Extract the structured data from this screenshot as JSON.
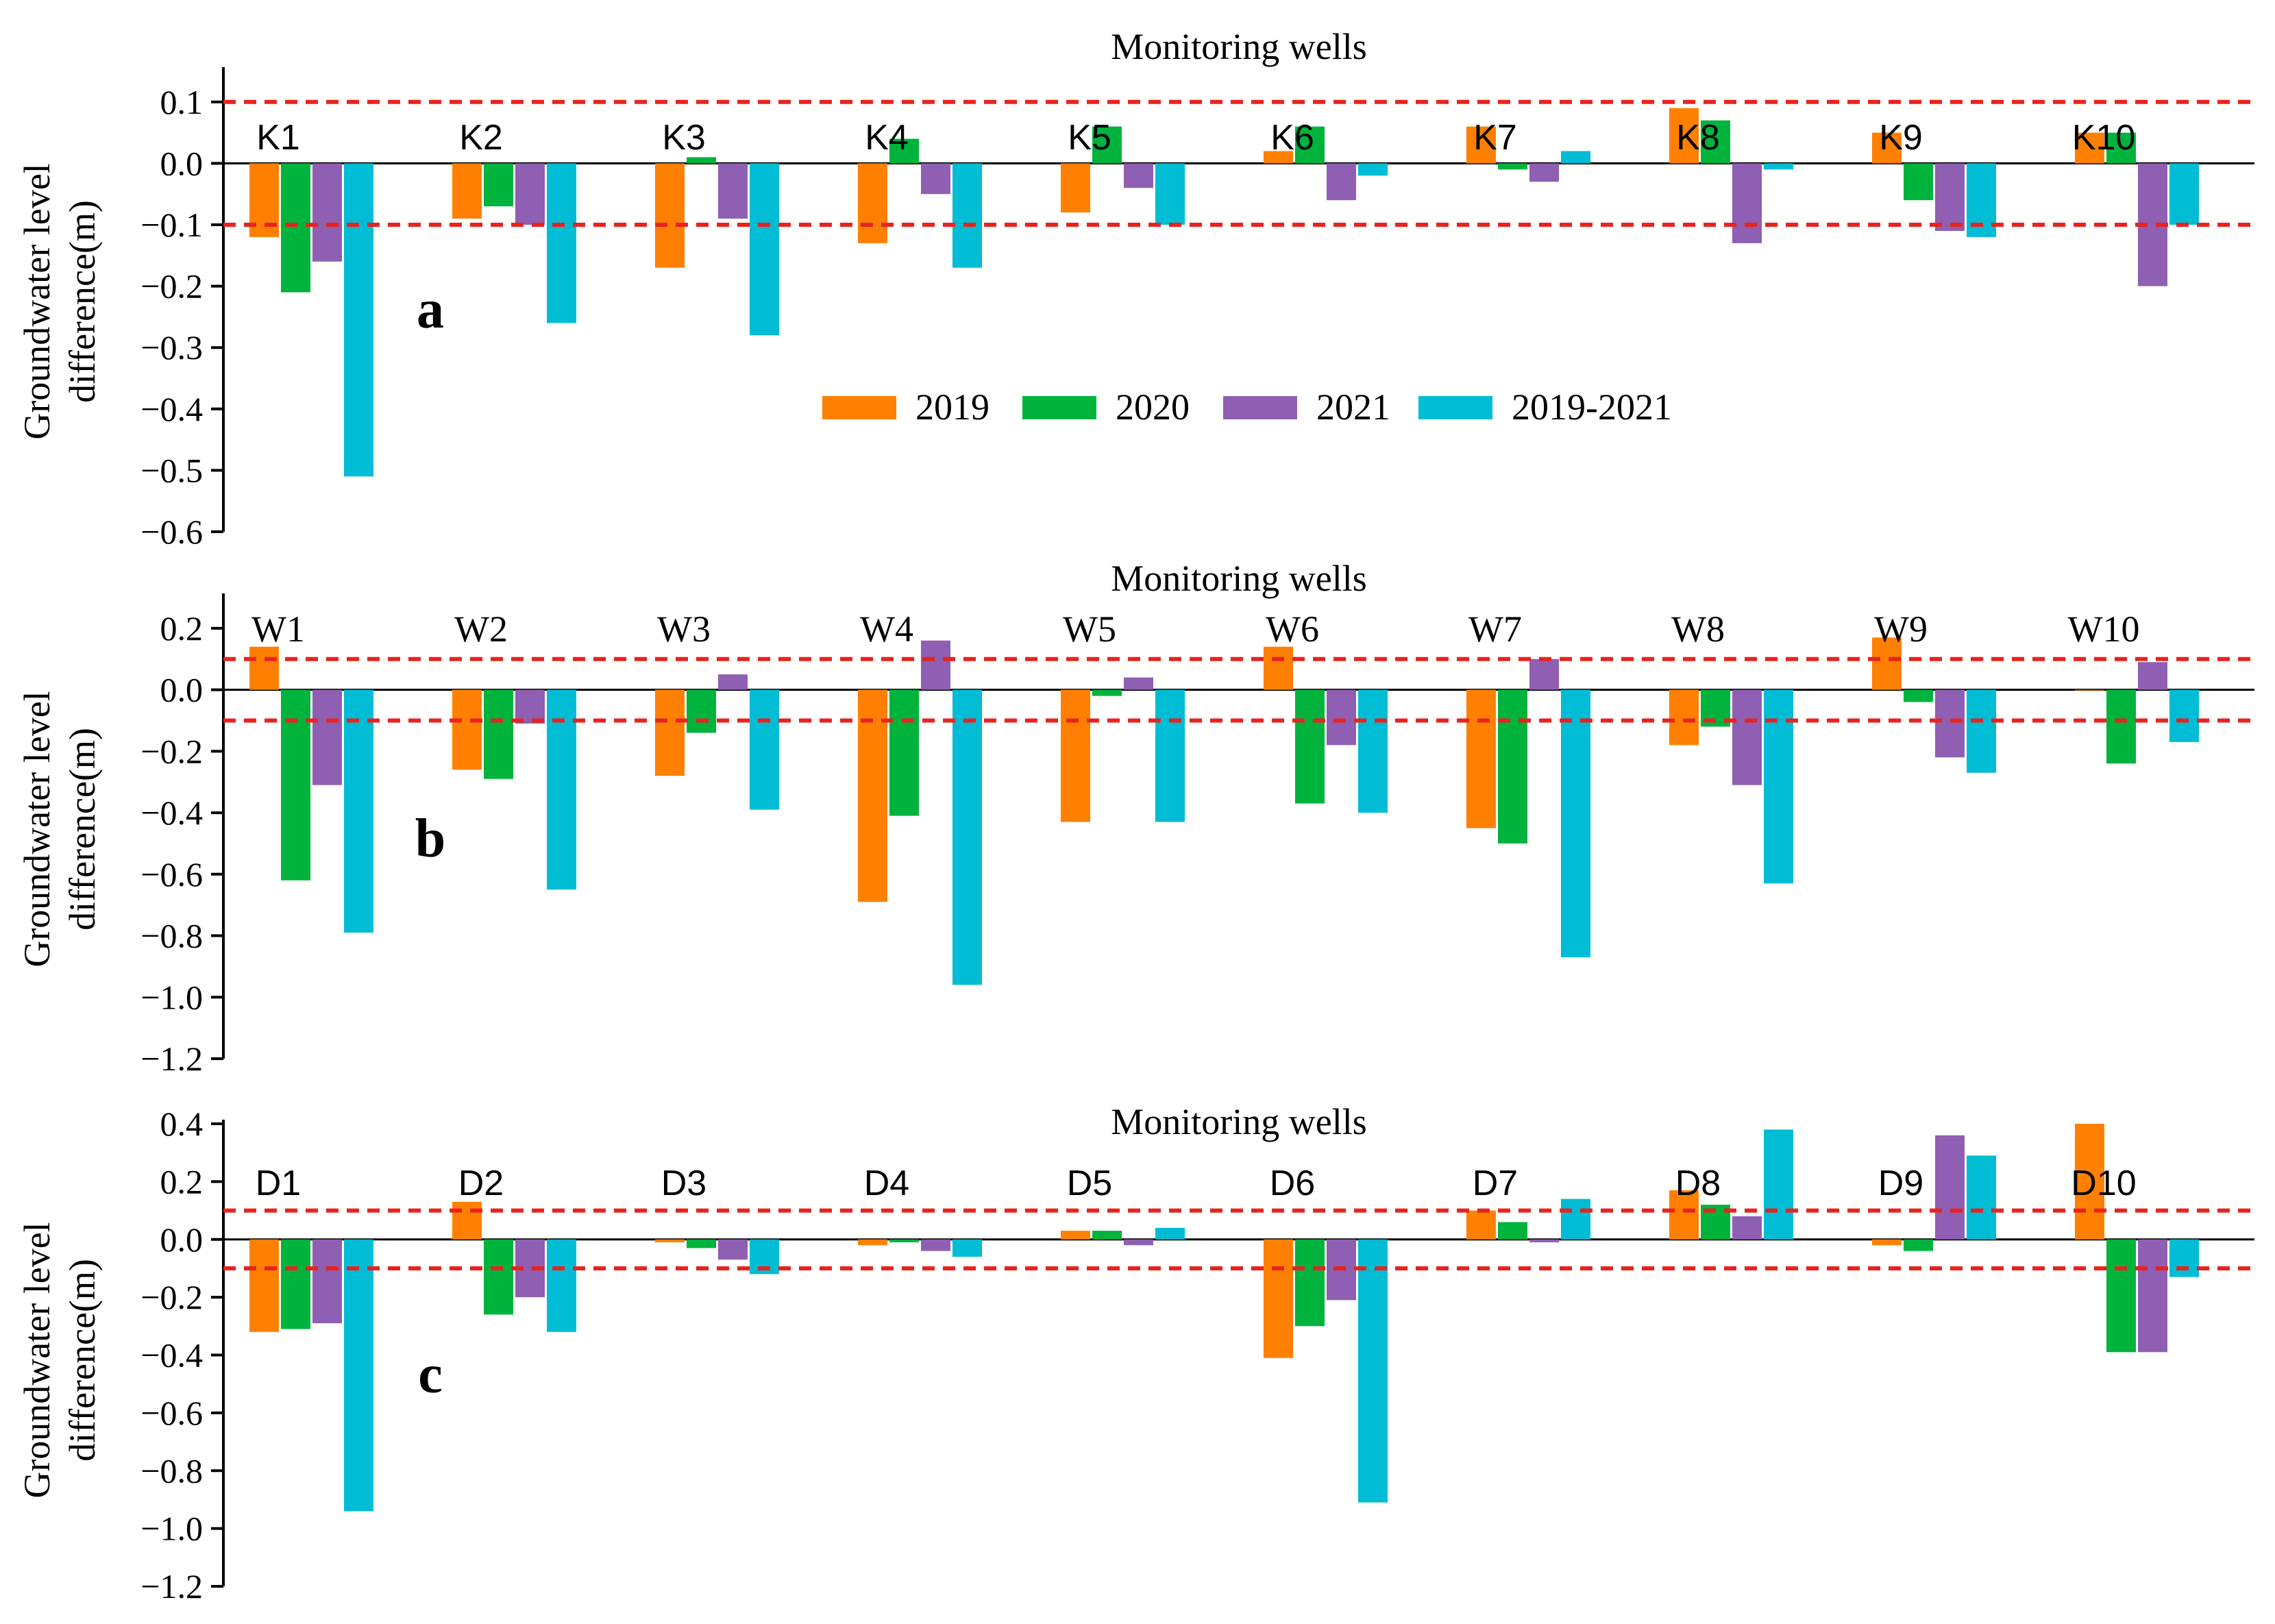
{
  "colors": {
    "2019": "#FF8000",
    "2020": "#00B33C",
    "2021": "#8E5FB2",
    "2019-2021": "#00BCD4",
    "threshold": "#E8231F",
    "axis": "#000000"
  },
  "legend": {
    "labels": [
      "2019",
      "2020",
      "2021",
      "2019-2021"
    ]
  },
  "chart_data": [
    {
      "type": "bar",
      "panel_label": "a",
      "title": "Monitoring wells",
      "xlabel": "",
      "ylabel_lines": [
        "Groundwater level",
        "difference(m)"
      ],
      "categories": [
        "K1",
        "K2",
        "K3",
        "K4",
        "K5",
        "K6",
        "K7",
        "K8",
        "K9",
        "K10"
      ],
      "ylim": [
        -0.6,
        0.15
      ],
      "yticks": [
        0.1,
        0.0,
        -0.1,
        -0.2,
        -0.3,
        -0.4,
        -0.5,
        -0.6
      ],
      "ytick_labels": [
        "0.1",
        "0.0",
        "−0.1",
        "−0.2",
        "−0.3",
        "−0.4",
        "−0.5",
        "−0.6"
      ],
      "thresholds": [
        0.1,
        -0.1
      ],
      "series": [
        {
          "name": "2019",
          "values": [
            -0.12,
            -0.09,
            -0.17,
            -0.13,
            -0.08,
            0.02,
            0.06,
            0.09,
            0.05,
            0.05
          ]
        },
        {
          "name": "2020",
          "values": [
            -0.21,
            -0.07,
            0.01,
            0.04,
            0.06,
            0.06,
            -0.01,
            0.07,
            -0.06,
            0.05
          ]
        },
        {
          "name": "2021",
          "values": [
            -0.16,
            -0.1,
            -0.09,
            -0.05,
            -0.04,
            -0.06,
            -0.03,
            -0.13,
            -0.11,
            -0.2
          ]
        },
        {
          "name": "2019-2021",
          "values": [
            -0.51,
            -0.26,
            -0.28,
            -0.17,
            -0.1,
            -0.02,
            0.02,
            -0.01,
            -0.12,
            -0.1
          ]
        }
      ]
    },
    {
      "type": "bar",
      "panel_label": "b",
      "title": "Monitoring wells",
      "xlabel": "",
      "ylabel_lines": [
        "Groundwater level",
        "difference(m)"
      ],
      "categories": [
        "W1",
        "W2",
        "W3",
        "W4",
        "W5",
        "W6",
        "W7",
        "W8",
        "W9",
        "W10"
      ],
      "ylim": [
        -1.2,
        0.3
      ],
      "yticks": [
        0.2,
        0.0,
        -0.2,
        -0.4,
        -0.6,
        -0.8,
        -1.0,
        -1.2
      ],
      "ytick_labels": [
        "0.2",
        "0.0",
        "−0.2",
        "−0.4",
        "−0.6",
        "−0.8",
        "−1.0",
        "−1.2"
      ],
      "thresholds": [
        0.1,
        -0.1
      ],
      "series": [
        {
          "name": "2019",
          "values": [
            0.14,
            -0.26,
            -0.28,
            -0.69,
            -0.43,
            0.14,
            -0.45,
            -0.18,
            0.17,
            0.0
          ]
        },
        {
          "name": "2020",
          "values": [
            -0.62,
            -0.29,
            -0.14,
            -0.41,
            -0.02,
            -0.37,
            -0.5,
            -0.12,
            -0.04,
            -0.24
          ]
        },
        {
          "name": "2021",
          "values": [
            -0.31,
            -0.11,
            0.05,
            0.16,
            0.04,
            -0.18,
            0.1,
            -0.31,
            -0.22,
            0.09
          ]
        },
        {
          "name": "2019-2021",
          "values": [
            -0.79,
            -0.65,
            -0.39,
            -0.96,
            -0.43,
            -0.4,
            -0.87,
            -0.63,
            -0.27,
            -0.17
          ]
        }
      ]
    },
    {
      "type": "bar",
      "panel_label": "c",
      "title": "Monitoring wells",
      "xlabel": "",
      "ylabel_lines": [
        "Groundwater level",
        "difference(m)"
      ],
      "categories": [
        "D1",
        "D2",
        "D3",
        "D4",
        "D5",
        "D6",
        "D7",
        "D8",
        "D9",
        "D10"
      ],
      "ylim": [
        -1.2,
        0.4
      ],
      "yticks": [
        0.4,
        0.2,
        0.0,
        -0.2,
        -0.4,
        -0.6,
        -0.8,
        -1.0,
        -1.2
      ],
      "ytick_labels": [
        "0.4",
        "0.2",
        "0.0",
        "−0.2",
        "−0.4",
        "−0.6",
        "−0.8",
        "−1.0",
        "−1.2"
      ],
      "thresholds": [
        0.1,
        -0.1
      ],
      "series": [
        {
          "name": "2019",
          "values": [
            -0.32,
            0.13,
            -0.01,
            -0.02,
            0.03,
            -0.41,
            0.1,
            0.17,
            -0.02,
            0.4
          ]
        },
        {
          "name": "2020",
          "values": [
            -0.31,
            -0.26,
            -0.03,
            -0.01,
            0.03,
            -0.3,
            0.06,
            0.12,
            -0.04,
            -0.39
          ]
        },
        {
          "name": "2021",
          "values": [
            -0.29,
            -0.2,
            -0.07,
            -0.04,
            -0.02,
            -0.21,
            -0.01,
            0.08,
            0.36,
            -0.39
          ]
        },
        {
          "name": "2019-2021",
          "values": [
            -0.94,
            -0.32,
            -0.12,
            -0.06,
            0.04,
            -0.91,
            0.14,
            0.38,
            0.29,
            -0.13
          ]
        }
      ]
    }
  ]
}
